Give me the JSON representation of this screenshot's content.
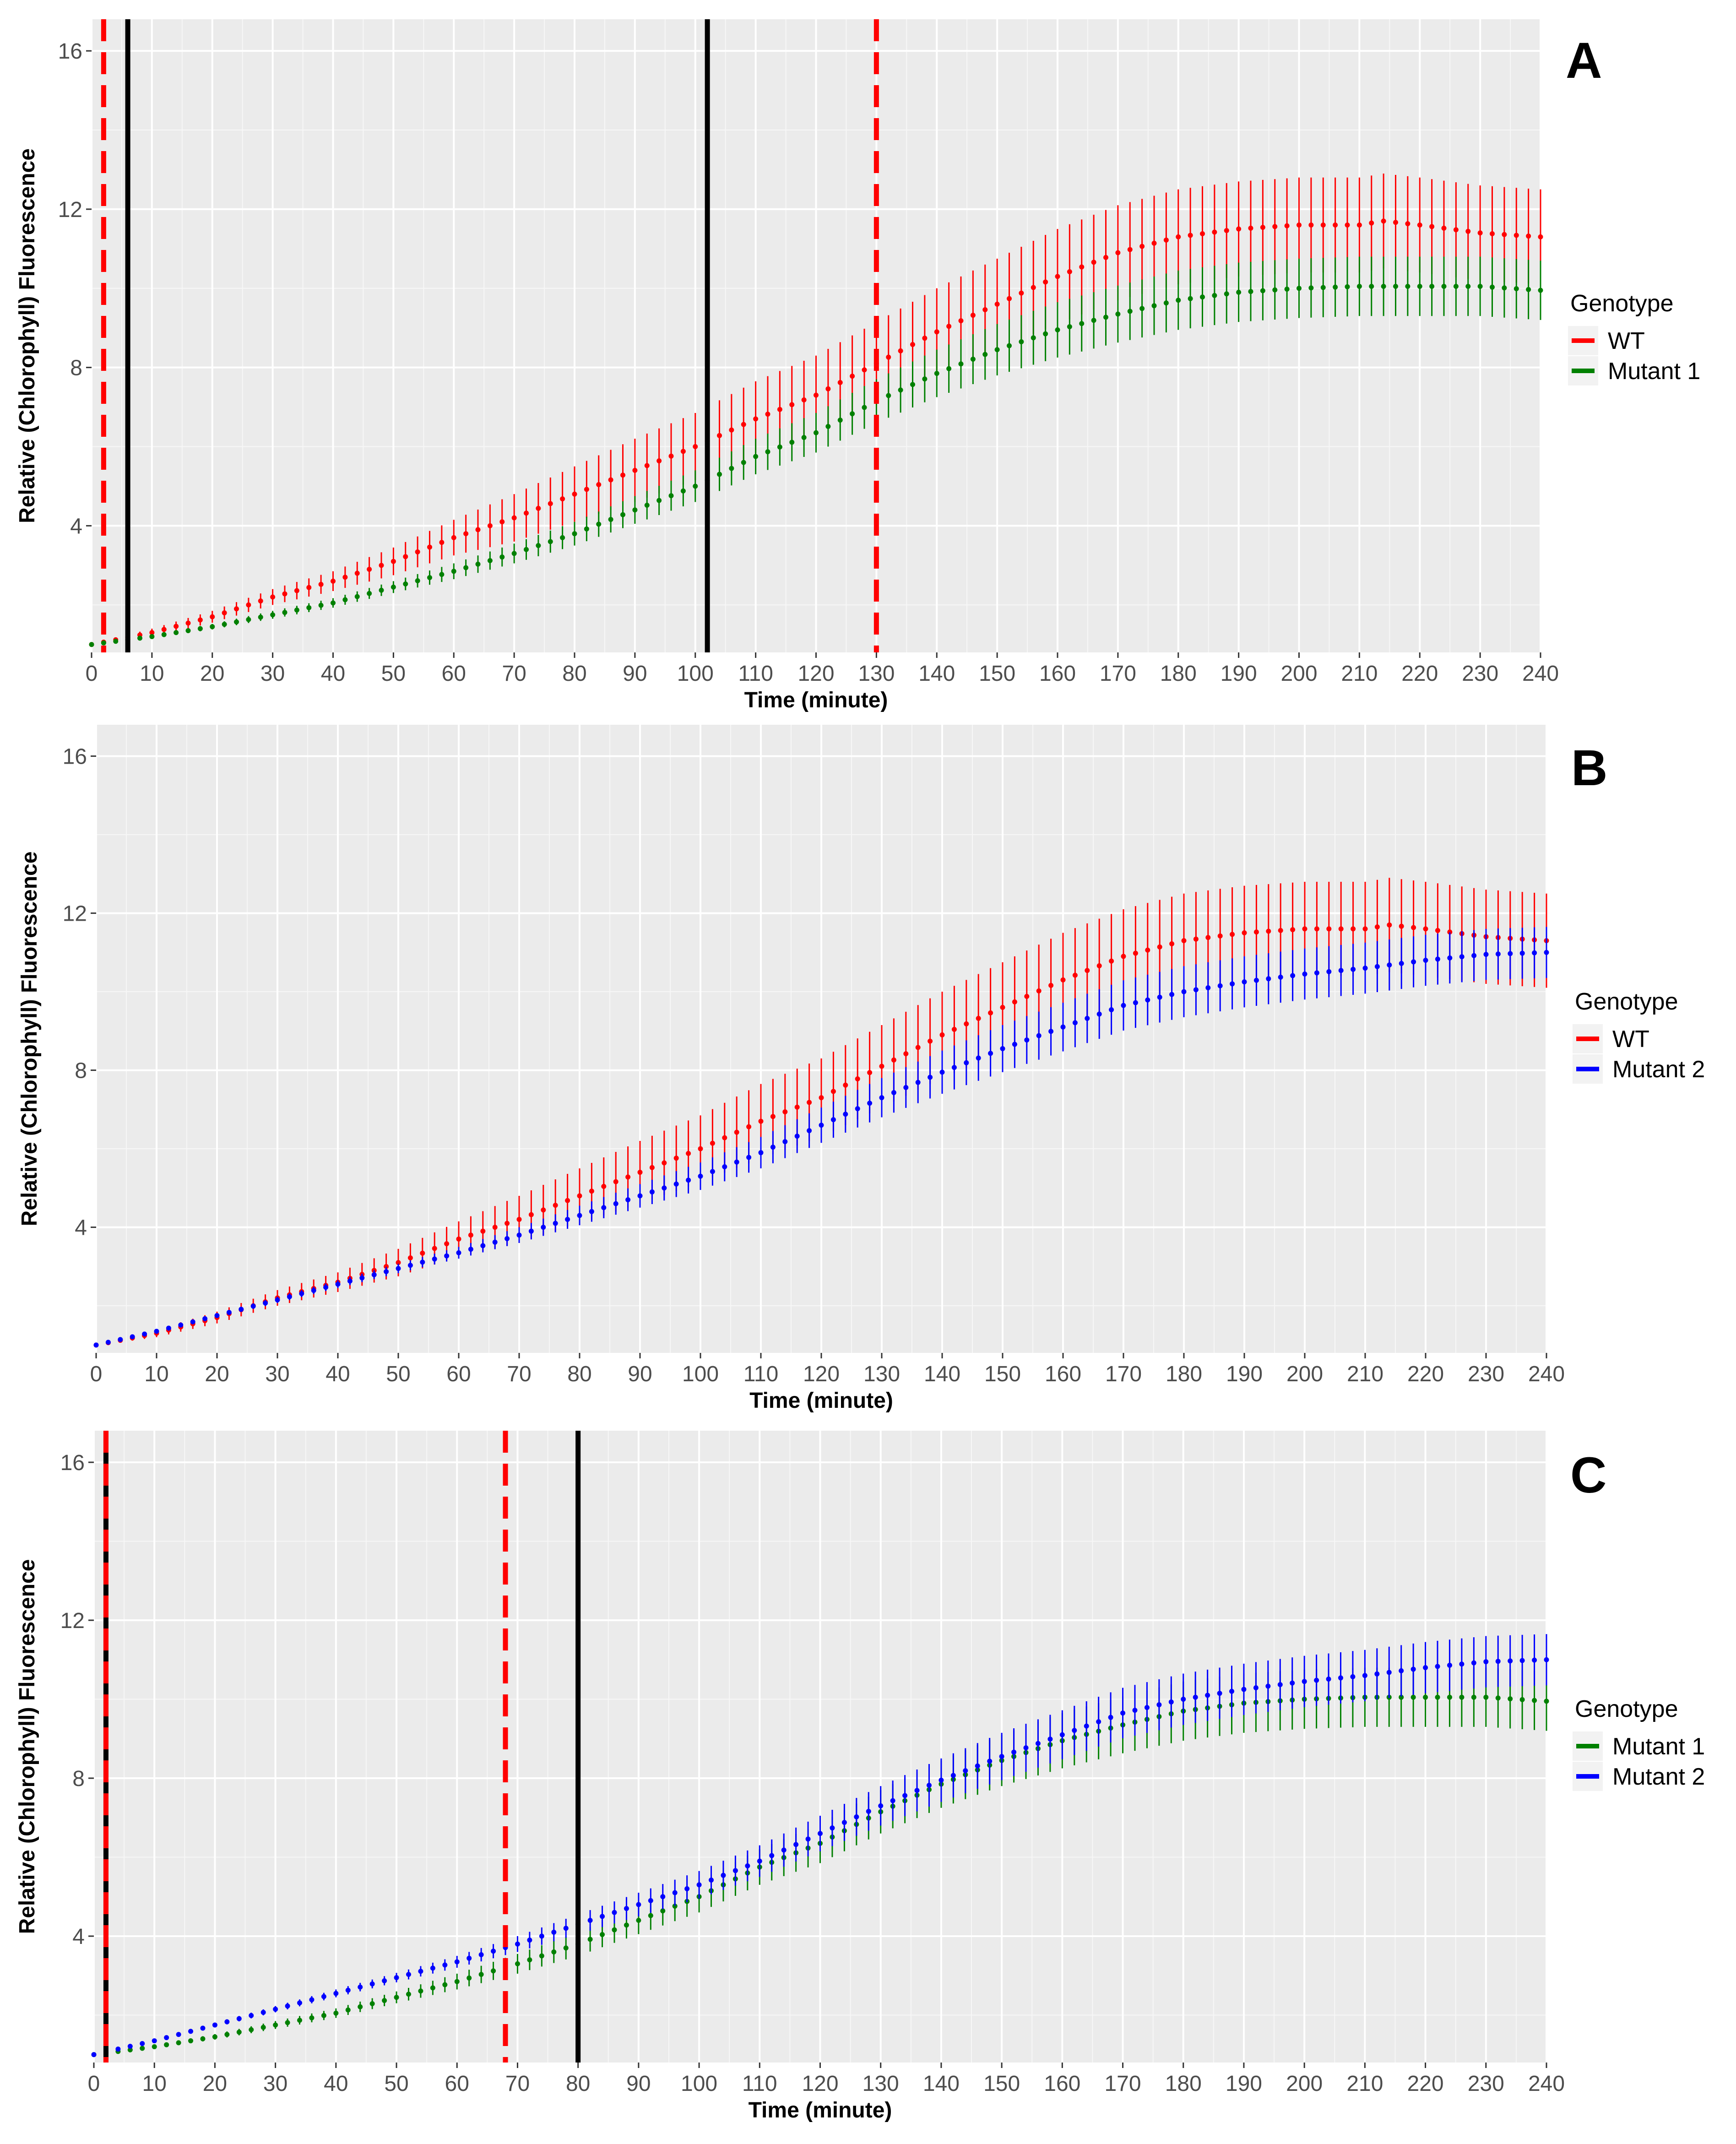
{
  "chart_data": [
    {
      "type": "scatter",
      "panel_label": "A",
      "xlabel": "Time (minute)",
      "ylabel": "Relative (Chlorophyll) Fluorescence",
      "xlim": [
        0,
        240
      ],
      "ylim": [
        0.8,
        16.8
      ],
      "x_ticks": [
        0,
        10,
        20,
        30,
        40,
        50,
        60,
        70,
        80,
        90,
        100,
        110,
        120,
        130,
        140,
        150,
        160,
        170,
        180,
        190,
        200,
        210,
        220,
        230,
        240
      ],
      "y_ticks": [
        4,
        8,
        12,
        16
      ],
      "grid": true,
      "legend": {
        "title": "Genotype",
        "entries": [
          "WT",
          "Mutant 1"
        ],
        "placement": "right"
      },
      "series": [
        {
          "name": "WT",
          "color": "#ff0000",
          "curve": "wt",
          "note": "mean with error bars, sampled every 2 minutes"
        },
        {
          "name": "Mutant 1",
          "color": "#008000",
          "curve": "mut1",
          "note": "mean with error bars, sampled every 2 minutes"
        }
      ],
      "vlines": [
        {
          "x": 2,
          "style": "dashed",
          "color": "#ff0000"
        },
        {
          "x": 6,
          "style": "solid",
          "color": "#000000"
        },
        {
          "x": 102,
          "style": "solid",
          "color": "#000000"
        },
        {
          "x": 130,
          "style": "dashed",
          "color": "#ff0000"
        }
      ]
    },
    {
      "type": "scatter",
      "panel_label": "B",
      "xlabel": "Time (minute)",
      "ylabel": "Relative (Chlorophyll) Fluorescence",
      "xlim": [
        0,
        240
      ],
      "ylim": [
        0.8,
        16.8
      ],
      "x_ticks": [
        0,
        10,
        20,
        30,
        40,
        50,
        60,
        70,
        80,
        90,
        100,
        110,
        120,
        130,
        140,
        150,
        160,
        170,
        180,
        190,
        200,
        210,
        220,
        230,
        240
      ],
      "y_ticks": [
        4,
        8,
        12,
        16
      ],
      "grid": true,
      "legend": {
        "title": "Genotype",
        "entries": [
          "WT",
          "Mutant 2"
        ],
        "placement": "right"
      },
      "series": [
        {
          "name": "WT",
          "color": "#ff0000",
          "curve": "wt",
          "note": "mean with error bars, sampled every 2 minutes"
        },
        {
          "name": "Mutant 2",
          "color": "#0000ff",
          "curve": "mut2",
          "note": "mean with error bars, sampled every 2 minutes"
        }
      ],
      "vlines": []
    },
    {
      "type": "scatter",
      "panel_label": "C",
      "xlabel": "Time (minute)",
      "ylabel": "Relative (Chlorophyll) Fluorescence",
      "xlim": [
        0,
        240
      ],
      "ylim": [
        0.8,
        16.8
      ],
      "x_ticks": [
        0,
        10,
        20,
        30,
        40,
        50,
        60,
        70,
        80,
        90,
        100,
        110,
        120,
        130,
        140,
        150,
        160,
        170,
        180,
        190,
        200,
        210,
        220,
        230,
        240
      ],
      "y_ticks": [
        4,
        8,
        12,
        16
      ],
      "grid": true,
      "legend": {
        "title": "Genotype",
        "entries": [
          "Mutant 1",
          "Mutant 2"
        ],
        "placement": "right"
      },
      "series": [
        {
          "name": "Mutant 1",
          "color": "#008000",
          "curve": "mut1",
          "note": "mean with error bars, sampled every 2 minutes"
        },
        {
          "name": "Mutant 2",
          "color": "#0000ff",
          "curve": "mut2",
          "note": "mean with error bars, sampled every 2 minutes"
        }
      ],
      "vlines": [
        {
          "x": 2,
          "style": "solid",
          "color": "#000000"
        },
        {
          "x": 2,
          "style": "dashed",
          "color": "#ff0000"
        },
        {
          "x": 68,
          "style": "dashed",
          "color": "#ff0000"
        },
        {
          "x": 80,
          "style": "solid",
          "color": "#000000"
        }
      ]
    }
  ],
  "curves": {
    "wt": {
      "anchors_t": [
        0,
        10,
        20,
        30,
        40,
        50,
        60,
        70,
        80,
        90,
        100,
        110,
        120,
        130,
        140,
        150,
        160,
        170,
        180,
        190,
        200,
        210,
        214,
        220,
        225,
        230,
        240
      ],
      "anchors_mean": [
        1.0,
        1.3,
        1.7,
        2.2,
        2.6,
        3.1,
        3.7,
        4.2,
        4.8,
        5.4,
        6.0,
        6.7,
        7.3,
        8.1,
        8.9,
        9.6,
        10.3,
        10.9,
        11.3,
        11.5,
        11.6,
        11.6,
        11.7,
        11.6,
        11.5,
        11.4,
        11.3
      ],
      "anchors_err": [
        0.02,
        0.1,
        0.15,
        0.2,
        0.25,
        0.35,
        0.45,
        0.6,
        0.7,
        0.8,
        0.85,
        0.95,
        1.0,
        1.05,
        1.1,
        1.15,
        1.2,
        1.2,
        1.2,
        1.2,
        1.2,
        1.2,
        1.2,
        1.2,
        1.2,
        1.2,
        1.2
      ]
    },
    "mut1": {
      "anchors_t": [
        0,
        10,
        20,
        30,
        40,
        50,
        60,
        70,
        80,
        90,
        100,
        110,
        120,
        130,
        140,
        150,
        160,
        170,
        180,
        190,
        200,
        210,
        220,
        230,
        240
      ],
      "anchors_mean": [
        1.0,
        1.2,
        1.45,
        1.75,
        2.05,
        2.45,
        2.85,
        3.3,
        3.8,
        4.4,
        5.0,
        5.75,
        6.35,
        7.15,
        7.85,
        8.45,
        8.95,
        9.35,
        9.7,
        9.9,
        10.0,
        10.05,
        10.05,
        10.05,
        9.95
      ],
      "anchors_err": [
        0.02,
        0.05,
        0.07,
        0.1,
        0.12,
        0.15,
        0.2,
        0.25,
        0.3,
        0.35,
        0.4,
        0.45,
        0.5,
        0.55,
        0.6,
        0.65,
        0.7,
        0.72,
        0.75,
        0.75,
        0.75,
        0.75,
        0.75,
        0.75,
        0.75
      ]
    },
    "mut2": {
      "anchors_t": [
        0,
        10,
        20,
        30,
        40,
        50,
        60,
        70,
        80,
        90,
        100,
        110,
        120,
        130,
        140,
        150,
        160,
        170,
        180,
        190,
        200,
        210,
        220,
        230,
        240
      ],
      "anchors_mean": [
        1.0,
        1.35,
        1.75,
        2.15,
        2.55,
        2.95,
        3.35,
        3.8,
        4.3,
        4.8,
        5.3,
        5.9,
        6.6,
        7.3,
        7.95,
        8.55,
        9.1,
        9.65,
        10.0,
        10.25,
        10.45,
        10.6,
        10.8,
        10.95,
        11.0
      ],
      "anchors_err": [
        0.02,
        0.05,
        0.06,
        0.08,
        0.1,
        0.12,
        0.15,
        0.2,
        0.25,
        0.3,
        0.35,
        0.4,
        0.45,
        0.5,
        0.55,
        0.6,
        0.62,
        0.64,
        0.65,
        0.65,
        0.65,
        0.65,
        0.65,
        0.65,
        0.65
      ]
    }
  }
}
